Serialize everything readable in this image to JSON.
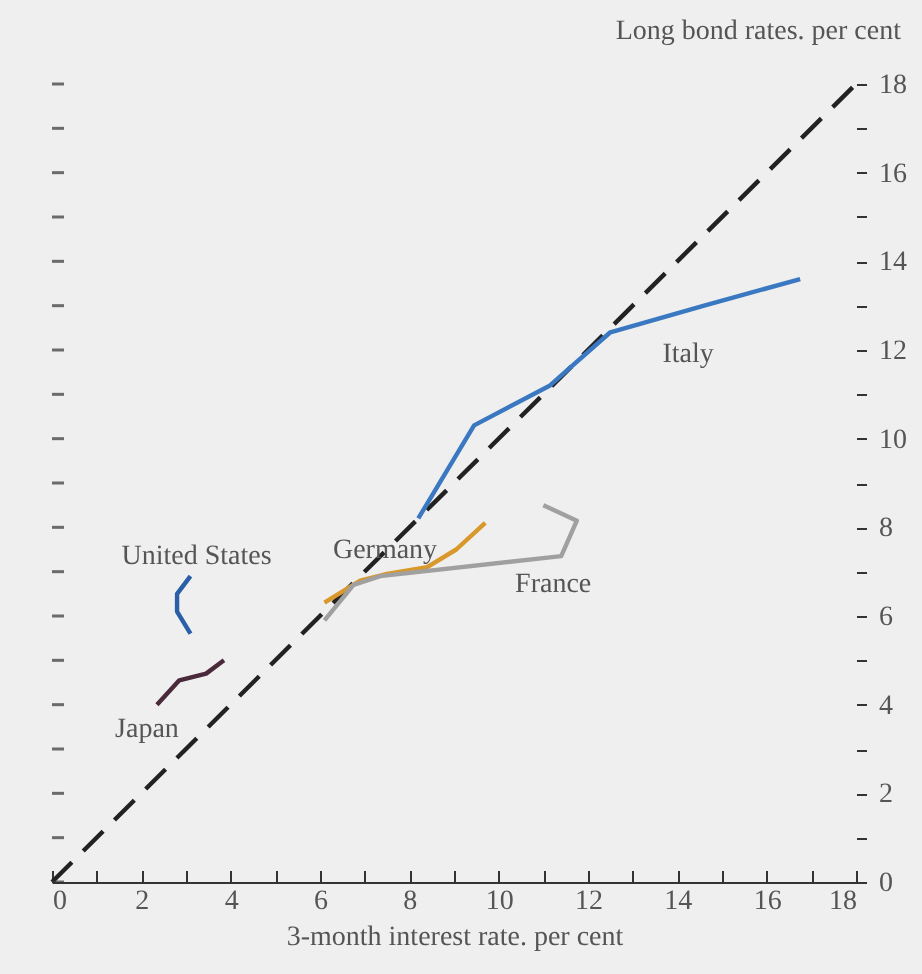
{
  "chart_data": {
    "type": "line",
    "xlabel": "3-month interest rate. per cent",
    "ylabel": "Long bond rates. per cent",
    "xlim": [
      0,
      18
    ],
    "ylim": [
      0,
      18
    ],
    "xticks": [
      0,
      {
        "value": 1,
        "label": null
      },
      2,
      {
        "value": 3,
        "label": null
      },
      4,
      {
        "value": 5,
        "label": null
      },
      6,
      {
        "value": 7,
        "label": null
      },
      8,
      {
        "value": 9,
        "label": null
      },
      10,
      {
        "value": 11,
        "label": null
      },
      12,
      {
        "value": 13,
        "label": null
      },
      14,
      {
        "value": 15,
        "label": null
      },
      16,
      {
        "value": 17,
        "label": null
      },
      18
    ],
    "yticks": [
      0,
      {
        "value": 1,
        "label": null
      },
      2,
      {
        "value": 3,
        "label": null
      },
      4,
      {
        "value": 5,
        "label": null
      },
      6,
      {
        "value": 7,
        "label": null
      },
      8,
      {
        "value": 9,
        "label": null
      },
      10,
      {
        "value": 11,
        "label": null
      },
      12,
      {
        "value": 13,
        "label": null
      },
      14,
      {
        "value": 15,
        "label": null
      },
      16,
      {
        "value": 17,
        "label": null
      },
      18
    ],
    "grid": false,
    "legend": false,
    "series": [
      {
        "color": "#222222",
        "line_style": "dashed",
        "x": [
          0,
          18
        ],
        "values": [
          0,
          18
        ]
      },
      {
        "name": "Italy",
        "color": "#3a78c2",
        "x": [
          8.2,
          9.45,
          11.15,
          12.5,
          14.6,
          16.75
        ],
        "values": [
          8.2,
          10.3,
          11.2,
          12.4,
          13.0,
          13.6
        ]
      },
      {
        "name": "Germany",
        "color": "#d9982b",
        "x": [
          6.1,
          6.9,
          7.5,
          8.4,
          9.05,
          9.7
        ],
        "values": [
          6.3,
          6.8,
          6.95,
          7.1,
          7.5,
          8.1
        ]
      },
      {
        "name": "France",
        "color": "#a0a0a0",
        "x": [
          6.1,
          6.75,
          7.35,
          11.4,
          11.75,
          11.0
        ],
        "values": [
          5.9,
          6.7,
          6.9,
          7.35,
          8.15,
          8.5
        ]
      },
      {
        "name": "United States",
        "color": "#2a5fa8",
        "x": [
          3.1,
          2.8,
          2.8,
          3.1
        ],
        "values": [
          6.9,
          6.5,
          6.1,
          5.6
        ]
      },
      {
        "name": "Japan",
        "color": "#4a2a3a",
        "x": [
          3.85,
          3.45,
          2.85,
          2.35
        ],
        "values": [
          5.0,
          4.7,
          4.55,
          4.0
        ]
      }
    ]
  }
}
